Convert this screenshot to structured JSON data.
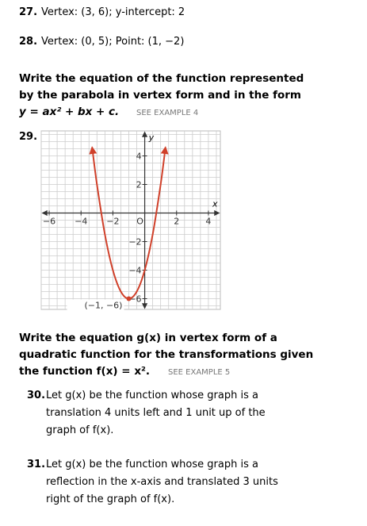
{
  "problems": [
    {
      "number": "27.",
      "text": "Vertex: (3, 6); y-intercept: 2"
    },
    {
      "number": "28.",
      "text": "Vertex: (0, 5); Point: (1, −2)"
    }
  ],
  "instruction_1": {
    "lines": [
      "Write the equation of the function represented",
      "by the  parabola in vertex form and in the form",
      "y = ax² + bx + c."
    ],
    "see": "SEE EXAMPLE 4"
  },
  "problem_29": {
    "number": "29.",
    "graph": {
      "x_label": "x",
      "y_label": "y",
      "xlim": [
        -6.5,
        4.75
      ],
      "ylim": [
        -6.75,
        5.75
      ],
      "grid_step": 0.5,
      "xticks": [
        {
          "value": -6,
          "label": "−6"
        },
        {
          "value": -4,
          "label": "−4"
        },
        {
          "value": -2,
          "label": "−2"
        },
        {
          "value": 0,
          "label": "O"
        },
        2,
        4
      ],
      "yticks": [
        4,
        2,
        {
          "value": -2,
          "label": "−2"
        },
        {
          "value": -4,
          "label": "−4"
        },
        {
          "value": -6,
          "label": "−6"
        }
      ],
      "curve_x": [
        -3.3,
        -3,
        -2.5,
        -2,
        -1.5,
        -1,
        -0.5,
        0,
        0.5,
        1,
        1.3
      ],
      "curve_y": [
        4.58,
        2,
        -1.5,
        -4,
        -5.5,
        -6,
        -5.5,
        -4,
        -1.5,
        2,
        4.58
      ],
      "color": "#d0402a",
      "vertex": {
        "x": -1,
        "y": -6,
        "label": "(−1, −6)"
      }
    }
  },
  "instruction_2": {
    "lines": [
      "Write the equation g(x) in vertex form of a",
      "quadratic function for the transformations given",
      "the function f(x) = x²."
    ],
    "see": "SEE EXAMPLE 5"
  },
  "problems_2": [
    {
      "number": "30.",
      "lines": [
        "Let g(x) be the function whose graph is a",
        "translation 4 units left and 1 unit up of the",
        "graph of f(x)."
      ]
    },
    {
      "number": "31.",
      "lines": [
        "Let g(x) be the function whose graph is a",
        "reflection in the x-axis and translated 3 units",
        "right of the graph of f(x)."
      ]
    }
  ]
}
